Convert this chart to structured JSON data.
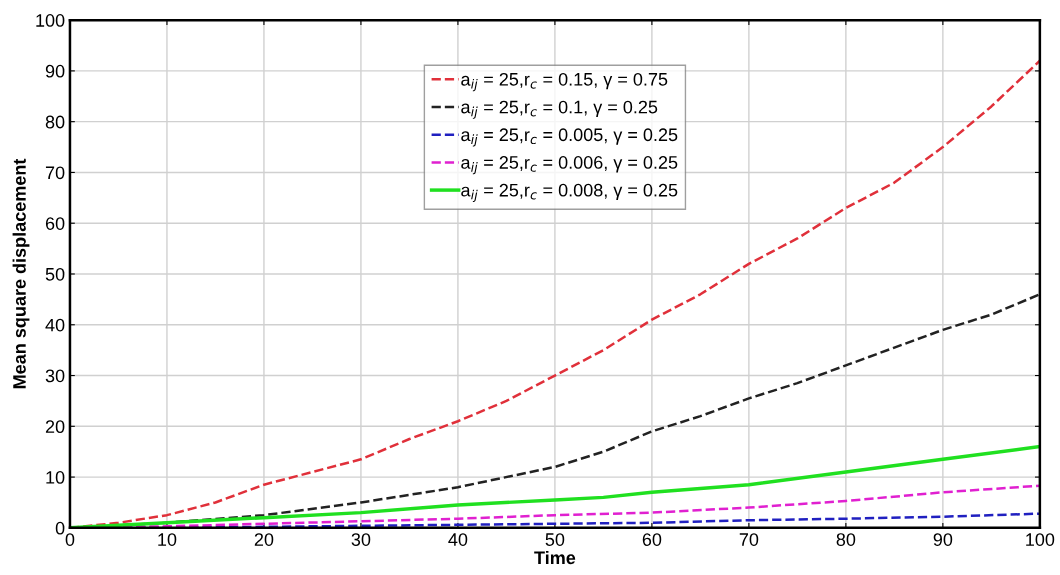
{
  "chart_data": {
    "type": "line",
    "xlabel": "Time",
    "ylabel": "Mean square displacement",
    "xlim": [
      0,
      100
    ],
    "ylim": [
      0,
      100
    ],
    "xticks": [
      0,
      10,
      20,
      30,
      40,
      50,
      60,
      70,
      80,
      90,
      100
    ],
    "yticks": [
      0,
      10,
      20,
      30,
      40,
      50,
      60,
      70,
      80,
      90,
      100
    ],
    "grid": true,
    "legend": "top",
    "series": [
      {
        "name": "a$_{ij}$ = 25,r$_{c}$ = 0.15, γ = 0.75",
        "color": "#e0303a",
        "line_style": "dashed",
        "x": [
          0,
          5,
          10,
          15,
          20,
          25,
          30,
          35,
          40,
          45,
          50,
          55,
          60,
          65,
          70,
          75,
          80,
          85,
          90,
          95,
          100
        ],
        "values": [
          0,
          1,
          2.5,
          5,
          8.5,
          11,
          13.5,
          17.5,
          21,
          25,
          30,
          35,
          41,
          46,
          52,
          57,
          63,
          68,
          75,
          83,
          92
        ]
      },
      {
        "name": "a$_{ij}$ = 25,r$_{c}$ = 0.1, γ = 0.25",
        "color": "#222222",
        "line_style": "dashed",
        "x": [
          0,
          10,
          20,
          30,
          40,
          50,
          55,
          60,
          65,
          70,
          75,
          80,
          85,
          90,
          95,
          100
        ],
        "values": [
          0,
          1,
          2.5,
          5,
          8,
          12,
          15,
          19,
          22,
          25.5,
          28.5,
          32,
          35.5,
          39,
          42,
          46
        ]
      },
      {
        "name": "a$_{ij}$ = 25,r$_{c}$ = 0.005, γ = 0.25",
        "color": "#2020c0",
        "line_style": "dashed",
        "x": [
          0,
          20,
          40,
          60,
          70,
          80,
          90,
          100
        ],
        "values": [
          0,
          0.2,
          0.6,
          1,
          1.5,
          1.8,
          2.2,
          2.8
        ]
      },
      {
        "name": "a$_{ij}$ = 25,r$_{c}$ = 0.006, γ = 0.25",
        "color": "#e020d0",
        "line_style": "dashed",
        "x": [
          0,
          10,
          20,
          30,
          40,
          50,
          60,
          70,
          80,
          90,
          100
        ],
        "values": [
          0,
          0.3,
          0.8,
          1.3,
          1.8,
          2.5,
          3,
          4,
          5.3,
          7,
          8.3
        ]
      },
      {
        "name": "a$_{ij}$ = 25,r$_{c}$ = 0.008, γ = 0.25",
        "color": "#20e020",
        "line_style": "solid",
        "x": [
          0,
          10,
          20,
          30,
          40,
          50,
          55,
          60,
          70,
          80,
          90,
          100
        ],
        "values": [
          0,
          1,
          2,
          3,
          4.5,
          5.5,
          6,
          7,
          8.5,
          11,
          13.5,
          16
        ]
      }
    ]
  }
}
